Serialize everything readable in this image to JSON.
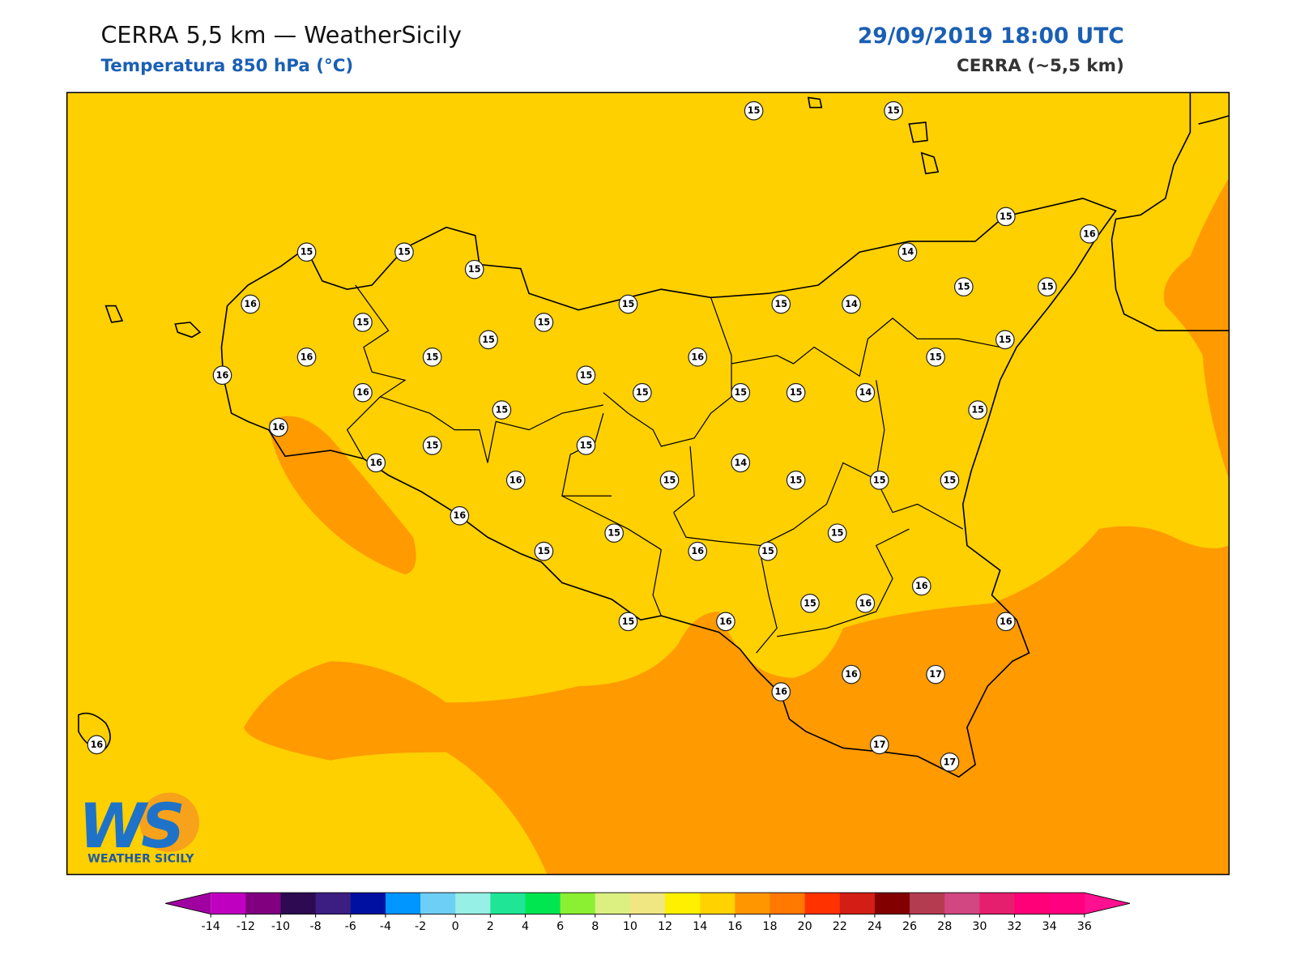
{
  "header": {
    "title": "CERRA 5,5 km — WeatherSicily",
    "subtitle": "Temperatura 850 hPa (°C)",
    "datetime": "29/09/2019 18:00 UTC",
    "model": "CERRA (~5,5 km)"
  },
  "map": {
    "land_color": "#ffd000",
    "warm_color": "#ff9a00",
    "coast_color": "#000000"
  },
  "stations": [
    15,
    15,
    15,
    15,
    15,
    15,
    16,
    14,
    16,
    15,
    15,
    14,
    15,
    15,
    15,
    15,
    15,
    15,
    16,
    15,
    16,
    15,
    16,
    15,
    16,
    15,
    15,
    15,
    14,
    15,
    15,
    16,
    15,
    15,
    16,
    14,
    16,
    15,
    15,
    15,
    15,
    16,
    15,
    15,
    15,
    16,
    15,
    16,
    15,
    16,
    15,
    16,
    16,
    16,
    17,
    16,
    17,
    17,
    16
  ],
  "colorbar": {
    "ticks": [
      -14,
      -12,
      -10,
      -8,
      -6,
      -4,
      -2,
      0,
      2,
      4,
      6,
      8,
      10,
      12,
      14,
      16,
      18,
      20,
      22,
      24,
      26,
      28,
      30,
      32,
      34,
      36
    ],
    "colors": [
      "#c000c0",
      "#800080",
      "#2d0a52",
      "#3c1e82",
      "#0010a0",
      "#0096ff",
      "#6ecff6",
      "#96f0e6",
      "#1ee696",
      "#00e650",
      "#8cf032",
      "#dcf082",
      "#f0e682",
      "#fff000",
      "#ffd200",
      "#ff9600",
      "#ff7800",
      "#ff3200",
      "#d21e14",
      "#820000",
      "#b43c50",
      "#d24682",
      "#e61e6e",
      "#ff0078",
      "#ff0080"
    ],
    "extend_colors": [
      "#a000a0",
      "#ff1090"
    ]
  },
  "logo": {
    "mark": "WS",
    "text": "WEATHER SICILY"
  }
}
